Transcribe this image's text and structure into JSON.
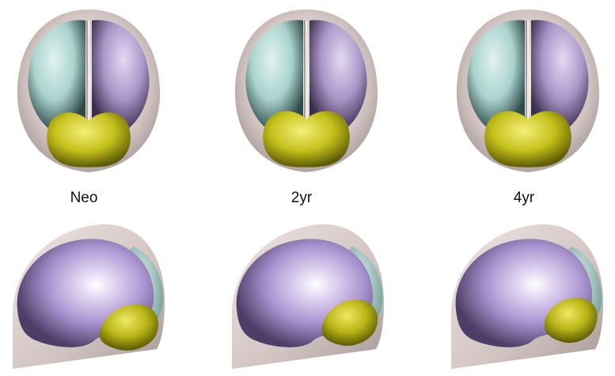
{
  "figure": {
    "labels": [
      "Neo",
      "2yr",
      "4yr"
    ],
    "colors": {
      "skull": "#c9b8b4",
      "left_hemisphere": "#b8dcd8",
      "right_hemisphere": "#b9a6d6",
      "cerebellum": "#c8c41c",
      "background": "#ffffff"
    }
  }
}
